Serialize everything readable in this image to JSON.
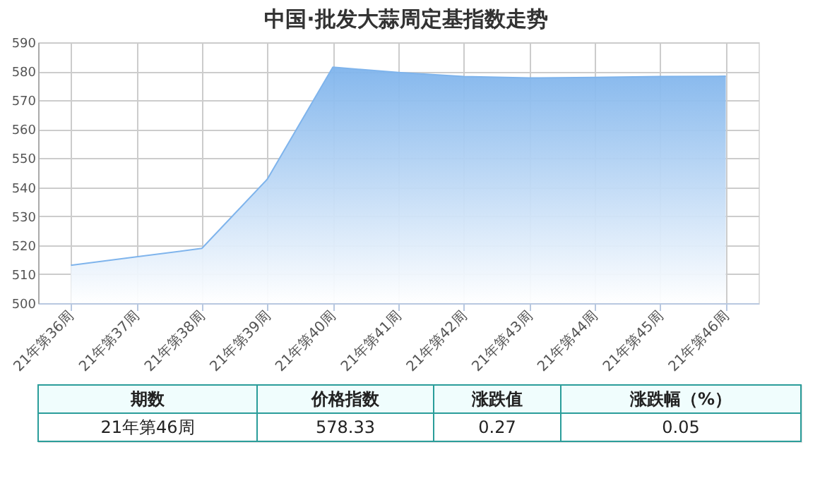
{
  "chart_data": {
    "type": "area",
    "title": "中国·批发大蒜周定基指数走势",
    "categories": [
      "21年第36周",
      "21年第37周",
      "21年第38周",
      "21年第39周",
      "21年第40周",
      "21年第41周",
      "21年第42周",
      "21年第43周",
      "21年第44周",
      "21年第45周",
      "21年第46周"
    ],
    "series": [
      {
        "color": "#7fb4ec",
        "values": [
          513.1,
          516,
          518.9,
          542.8,
          581.4,
          579.6,
          578.2,
          577.7,
          577.9,
          578.2,
          578.3
        ]
      }
    ],
    "ylim": [
      500,
      590
    ],
    "yticks": [
      500,
      510,
      520,
      530,
      540,
      550,
      560,
      570,
      580,
      590
    ],
    "grid": true,
    "annotations": [
      "期数",
      "价格指数",
      "涨跌值",
      "涨跌幅（%）",
      "21年第46周",
      "578.33",
      "0.27",
      "0.05"
    ]
  }
}
